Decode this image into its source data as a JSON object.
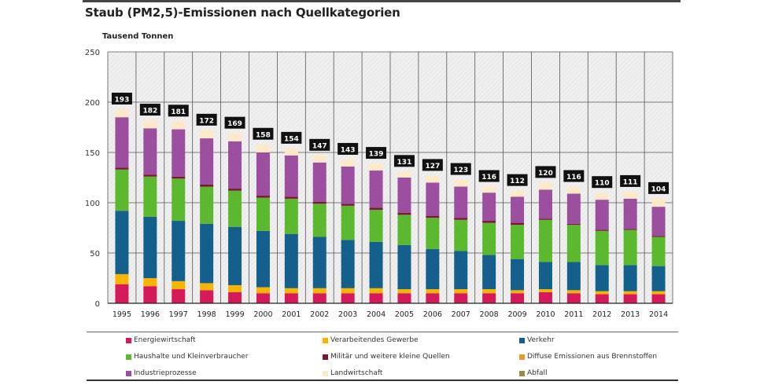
{
  "chart_data": {
    "type": "bar",
    "stacked": true,
    "title": "Staub (PM2,5)-Emissionen nach Quellkategorien",
    "ylabel": "Tausend Tonnen",
    "xlabel": "",
    "ylim": [
      0,
      250
    ],
    "yticks": [
      0,
      50,
      100,
      150,
      200,
      250
    ],
    "grid": true,
    "legend_position": "bottom",
    "categories": [
      "1995",
      "1996",
      "1997",
      "1998",
      "1999",
      "2000",
      "2001",
      "2002",
      "2003",
      "2004",
      "2005",
      "2006",
      "2007",
      "2008",
      "2009",
      "2010",
      "2011",
      "2012",
      "2013",
      "2014"
    ],
    "totals": [
      193,
      182,
      181,
      172,
      169,
      158,
      154,
      147,
      143,
      139,
      131,
      127,
      123,
      116,
      112,
      120,
      116,
      110,
      111,
      104
    ],
    "series": [
      {
        "name": "Energiewirtschaft",
        "color": "#d6195a",
        "values": [
          19,
          17,
          14,
          13,
          11,
          10,
          10,
          10,
          10,
          10,
          10,
          10,
          10,
          10,
          10,
          11,
          10,
          9,
          9,
          9
        ]
      },
      {
        "name": "Verarbeitendes Gewerbe",
        "color": "#f7b500",
        "values": [
          10,
          8,
          8,
          7,
          7,
          6,
          5,
          5,
          5,
          5,
          4,
          4,
          4,
          4,
          3,
          3,
          3,
          3,
          3,
          3
        ]
      },
      {
        "name": "Verkehr",
        "color": "#145f8c",
        "values": [
          63,
          61,
          60,
          59,
          58,
          56,
          54,
          51,
          48,
          46,
          44,
          40,
          38,
          34,
          31,
          27,
          28,
          26,
          26,
          25
        ]
      },
      {
        "name": "Haushalte und Kleinverbraucher",
        "color": "#5cb82e",
        "values": [
          41,
          40,
          42,
          37,
          36,
          33,
          35,
          33,
          34,
          32,
          30,
          31,
          31,
          32,
          34,
          42,
          37,
          34,
          35,
          29
        ]
      },
      {
        "name": "Militär und weitere kleine Quellen",
        "color": "#7a1636",
        "values": [
          2,
          2,
          2,
          2,
          2,
          2,
          2,
          2,
          2,
          2,
          2,
          2,
          2,
          2,
          2,
          1,
          1,
          1,
          1,
          1
        ]
      },
      {
        "name": "Industrieprozesse",
        "color": "#9b4f9e",
        "values": [
          50,
          46,
          47,
          46,
          47,
          43,
          41,
          39,
          37,
          37,
          35,
          33,
          31,
          28,
          26,
          29,
          30,
          30,
          30,
          29
        ]
      },
      {
        "name": "Landwirtschaft",
        "color": "#fde9c8",
        "values": [
          8,
          8,
          8,
          8,
          8,
          8,
          7,
          7,
          7,
          7,
          6,
          7,
          7,
          6,
          6,
          7,
          7,
          7,
          7,
          8
        ]
      },
      {
        "name": "Diffuse Emissionen aus Brennstoffen",
        "color": "#e39f2e",
        "values": [
          0,
          0,
          0,
          0,
          0,
          0,
          0,
          0,
          0,
          0,
          0,
          0,
          0,
          0,
          0,
          0,
          0,
          0,
          0,
          0
        ]
      },
      {
        "name": "Abfall",
        "color": "#9c8a4a",
        "values": [
          0,
          0,
          0,
          0,
          0,
          0,
          0,
          0,
          0,
          0,
          0,
          0,
          0,
          0,
          0,
          0,
          0,
          0,
          0,
          0
        ]
      }
    ],
    "legend_order": [
      "Energiewirtschaft",
      "Verarbeitendes Gewerbe",
      "Verkehr",
      "Haushalte und Kleinverbraucher",
      "Militär und weitere kleine Quellen",
      "Diffuse Emissionen aus Brennstoffen",
      "Industrieprozesse",
      "Landwirtschaft",
      "Abfall"
    ]
  }
}
